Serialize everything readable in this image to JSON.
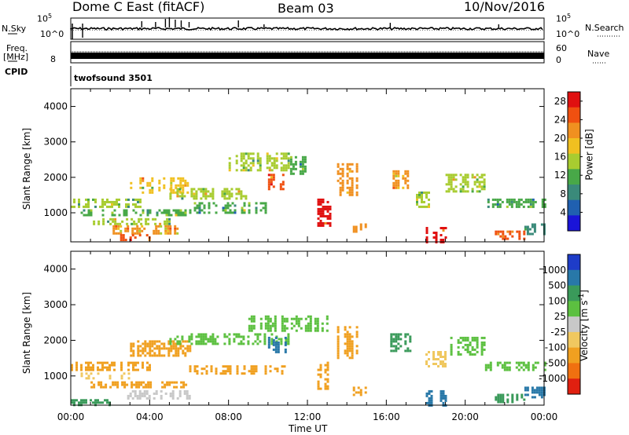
{
  "header": {
    "station": "Dome C East (fitACF)",
    "beam": "Beam 03",
    "date": "10/Nov/2016"
  },
  "top_panels": {
    "nsky_label": "N.Sky",
    "nsky_ticks": [
      "10^5",
      "10^0"
    ],
    "nsearch_label": "N.Search",
    "nsearch_ticks": [
      "10^5",
      "10^0"
    ],
    "freq_label": "Freq.",
    "freq_unit": "[MHz]",
    "freq_tick_low": "8",
    "nave_label": "Nave",
    "nave_ticks": [
      "60",
      "0"
    ],
    "cpid_label": "CPID",
    "cpid_value": "twofsound 3501"
  },
  "colors": {
    "power_scale": [
      "#1a14d8",
      "#2060b0",
      "#3a8a7a",
      "#48a848",
      "#a8cc30",
      "#f0c020",
      "#f09020",
      "#f05010",
      "#e01010"
    ],
    "velocity_scale": [
      "#1e3cc8",
      "#2878a8",
      "#3a9a5a",
      "#5cc040",
      "#c8c8c8",
      "#f0c860",
      "#f0a020",
      "#f07010",
      "#e02010"
    ]
  },
  "chart_data": [
    {
      "type": "heatmap",
      "title": "",
      "xlabel": "",
      "ylabel": "Slant Range [km]",
      "xlim": [
        "00:00",
        "24:00"
      ],
      "ylim": [
        180,
        4500
      ],
      "x_ticks": [
        "00:00",
        "04:00",
        "08:00",
        "12:00",
        "16:00",
        "20:00",
        "00:00"
      ],
      "y_ticks": [
        1000,
        2000,
        3000,
        4000
      ],
      "colorbar": {
        "label": "Power [dB]",
        "ticks": [
          4,
          8,
          12,
          16,
          20,
          24,
          28
        ],
        "range": [
          0,
          30
        ]
      },
      "patches": [
        {
          "t": [
            0.0,
            3.5
          ],
          "r": [
            1200,
            1400
          ],
          "v": 14
        },
        {
          "t": [
            0.5,
            6.0
          ],
          "r": [
            950,
            1100
          ],
          "v": 12
        },
        {
          "t": [
            1.0,
            5.0
          ],
          "r": [
            700,
            850
          ],
          "v": 16
        },
        {
          "t": [
            2.0,
            5.5
          ],
          "r": [
            450,
            650
          ],
          "v": 20
        },
        {
          "t": [
            2.5,
            4.0
          ],
          "r": [
            250,
            400
          ],
          "v": 24
        },
        {
          "t": [
            3.0,
            6.0
          ],
          "r": [
            1600,
            2000
          ],
          "v": 18
        },
        {
          "t": [
            5.0,
            9.0
          ],
          "r": [
            1400,
            1700
          ],
          "v": 16
        },
        {
          "t": [
            6.0,
            10.0
          ],
          "r": [
            1000,
            1300
          ],
          "v": 12
        },
        {
          "t": [
            8.0,
            11.0
          ],
          "r": [
            2200,
            2700
          ],
          "v": 14
        },
        {
          "t": [
            10.0,
            10.8
          ],
          "r": [
            1700,
            2100
          ],
          "v": 24
        },
        {
          "t": [
            11.0,
            12.0
          ],
          "r": [
            2100,
            2600
          ],
          "v": 10
        },
        {
          "t": [
            12.5,
            13.3
          ],
          "r": [
            650,
            1400
          ],
          "v": 28
        },
        {
          "t": [
            13.5,
            14.5
          ],
          "r": [
            1500,
            2400
          ],
          "v": 22
        },
        {
          "t": [
            14.3,
            15.0
          ],
          "r": [
            500,
            700
          ],
          "v": 20
        },
        {
          "t": [
            16.2,
            17.2
          ],
          "r": [
            1700,
            2200
          ],
          "v": 20
        },
        {
          "t": [
            17.5,
            18.5
          ],
          "r": [
            1200,
            1600
          ],
          "v": 16
        },
        {
          "t": [
            18.0,
            19.0
          ],
          "r": [
            200,
            600
          ],
          "v": 28
        },
        {
          "t": [
            19.0,
            21.0
          ],
          "r": [
            1600,
            2100
          ],
          "v": 16
        },
        {
          "t": [
            21.0,
            24.0
          ],
          "r": [
            1200,
            1400
          ],
          "v": 10
        },
        {
          "t": [
            21.5,
            23.0
          ],
          "r": [
            300,
            500
          ],
          "v": 24
        },
        {
          "t": [
            23.0,
            24.0
          ],
          "r": [
            400,
            700
          ],
          "v": 8
        }
      ]
    },
    {
      "type": "heatmap",
      "title": "",
      "xlabel": "Time UT",
      "ylabel": "Slant Range [km]",
      "xlim": [
        "00:00",
        "24:00"
      ],
      "ylim": [
        180,
        4500
      ],
      "x_ticks": [
        "00:00",
        "04:00",
        "08:00",
        "12:00",
        "16:00",
        "20:00",
        "00:00"
      ],
      "y_ticks": [
        1000,
        2000,
        3000,
        4000
      ],
      "colorbar": {
        "label": "Velocity [m s^-1]",
        "ticks": [
          1000,
          500,
          100,
          25,
          -25,
          -100,
          -500,
          -1000
        ]
      },
      "patches": [
        {
          "t": [
            0.0,
            4.0
          ],
          "r": [
            1200,
            1400
          ],
          "v": -500
        },
        {
          "t": [
            0.5,
            3.0
          ],
          "r": [
            950,
            1100
          ],
          "v": -100
        },
        {
          "t": [
            1.0,
            6.0
          ],
          "r": [
            700,
            850
          ],
          "v": -500
        },
        {
          "t": [
            2.5,
            6.0
          ],
          "r": [
            400,
            600
          ],
          "v": -25
        },
        {
          "t": [
            0.0,
            2.0
          ],
          "r": [
            200,
            350
          ],
          "v": 100
        },
        {
          "t": [
            3.0,
            6.0
          ],
          "r": [
            1600,
            2000
          ],
          "v": -500
        },
        {
          "t": [
            5.0,
            11.0
          ],
          "r": [
            1900,
            2200
          ],
          "v": 25
        },
        {
          "t": [
            6.0,
            11.0
          ],
          "r": [
            1100,
            1300
          ],
          "v": -500
        },
        {
          "t": [
            9.0,
            13.0
          ],
          "r": [
            2300,
            2700
          ],
          "v": 25
        },
        {
          "t": [
            10.0,
            11.0
          ],
          "r": [
            1700,
            2100
          ],
          "v": 500
        },
        {
          "t": [
            12.5,
            13.3
          ],
          "r": [
            650,
            1400
          ],
          "v": -500
        },
        {
          "t": [
            13.5,
            14.5
          ],
          "r": [
            1500,
            2400
          ],
          "v": -500
        },
        {
          "t": [
            14.3,
            15.0
          ],
          "r": [
            500,
            700
          ],
          "v": -500
        },
        {
          "t": [
            16.2,
            17.2
          ],
          "r": [
            1700,
            2200
          ],
          "v": 100
        },
        {
          "t": [
            17.5,
            19.0
          ],
          "r": [
            1300,
            1700
          ],
          "v": -100
        },
        {
          "t": [
            18.0,
            19.0
          ],
          "r": [
            200,
            600
          ],
          "v": 500
        },
        {
          "t": [
            19.0,
            21.0
          ],
          "r": [
            1600,
            2100
          ],
          "v": 25
        },
        {
          "t": [
            21.0,
            24.0
          ],
          "r": [
            1200,
            1400
          ],
          "v": 25
        },
        {
          "t": [
            21.5,
            23.0
          ],
          "r": [
            300,
            500
          ],
          "v": 100
        },
        {
          "t": [
            23.0,
            24.0
          ],
          "r": [
            400,
            700
          ],
          "v": 500
        }
      ]
    }
  ]
}
